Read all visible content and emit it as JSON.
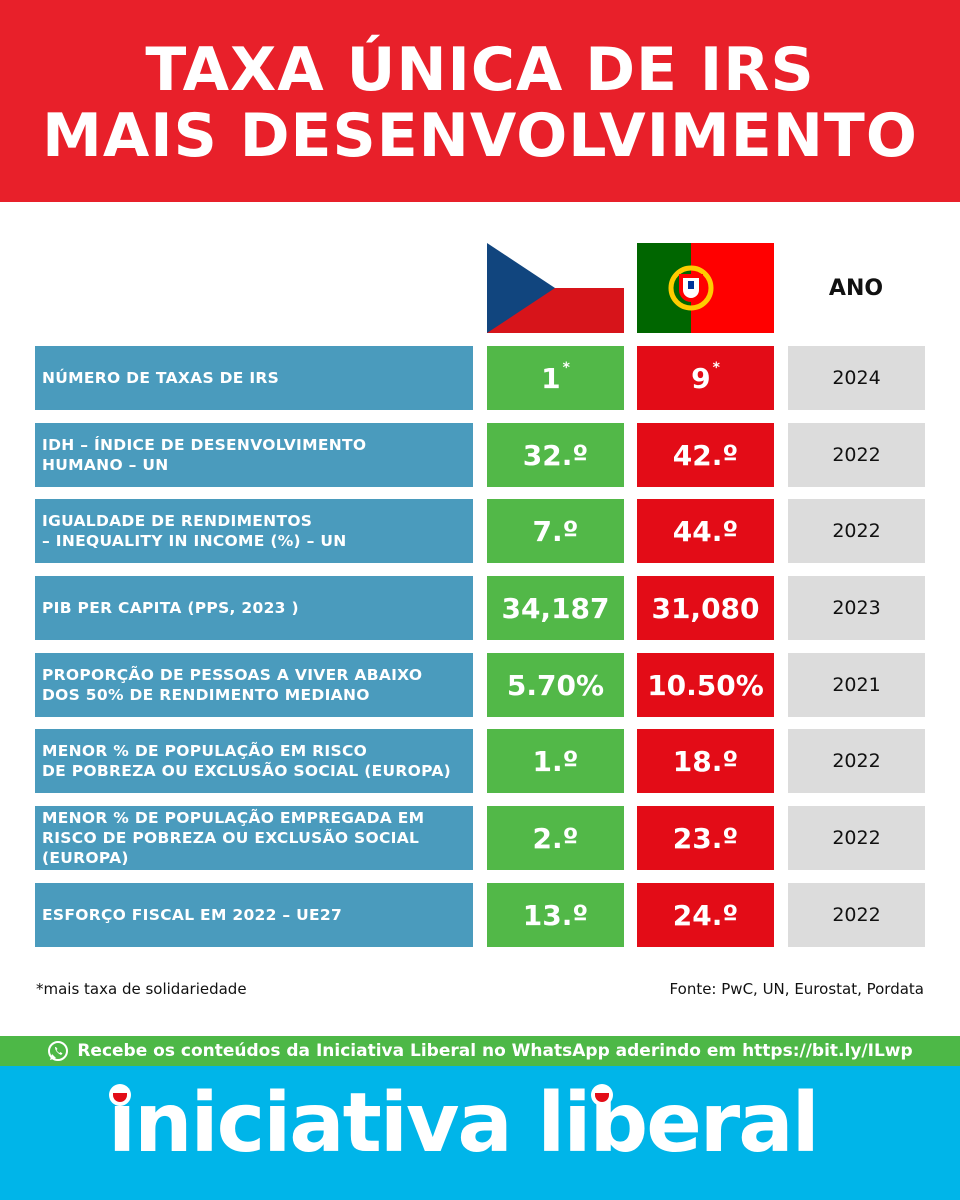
{
  "header": {
    "title_line1": "TAXA ÚNICA DE IRS",
    "title_line2": "MAIS DESENVOLVIMENTO"
  },
  "columns": {
    "country1_flag": "czech-republic-flag",
    "country2_flag": "portugal-flag",
    "year_label": "ANO"
  },
  "rows": [
    {
      "label": "NÚMERO DE TAXAS DE IRS",
      "cz": "1",
      "cz_mark": "*",
      "pt": "9",
      "pt_mark": "*",
      "year": "2024"
    },
    {
      "label": "IDH – ÍNDICE DE DESENVOLVIMENTO\nHUMANO – UN",
      "cz": "32.º",
      "pt": "42.º",
      "year": "2022"
    },
    {
      "label": "IGUALDADE DE RENDIMENTOS\n– INEQUALITY IN INCOME (%) – UN",
      "cz": "7.º",
      "pt": "44.º",
      "year": "2022"
    },
    {
      "label": "PIB PER CAPITA (PPS, 2023 )",
      "cz": "34,187",
      "pt": "31,080",
      "year": "2023"
    },
    {
      "label": "PROPORÇÃO DE PESSOAS A VIVER ABAIXO\nDOS 50% DE RENDIMENTO MEDIANO",
      "cz": "5.70%",
      "pt": "10.50%",
      "year": "2021"
    },
    {
      "label": "MENOR % DE POPULAÇÃO EM RISCO\nDE POBREZA OU EXCLUSÃO SOCIAL (EUROPA)",
      "cz": "1.º",
      "pt": "18.º",
      "year": "2022"
    },
    {
      "label": "MENOR % DE POPULAÇÃO EMPREGADA EM\nRISCO DE POBREZA OU EXCLUSÃO SOCIAL\n(EUROPA)",
      "cz": "2.º",
      "pt": "23.º",
      "year": "2022"
    },
    {
      "label": "ESFORÇO FISCAL EM 2022 – UE27",
      "cz": "13.º",
      "pt": "24.º",
      "year": "2022"
    }
  ],
  "footnote": "*mais taxa de solidariedade",
  "source": "Fonte: PwC, UN, Eurostat, Pordata",
  "whatsapp": {
    "icon": "whatsapp-icon",
    "text": "Recebe os conteúdos da Iniciativa Liberal no WhatsApp aderindo em https://bit.ly/ILwp"
  },
  "brand": {
    "name": "iniciativa liberal"
  },
  "colors": {
    "header_red": "#e8202a",
    "label_blue": "#4a9bbd",
    "cz_green": "#52b848",
    "pt_red": "#e30c17",
    "year_grey": "#dcdcdc",
    "whatsapp_green": "#4db847",
    "brand_blue": "#00b5e9"
  }
}
